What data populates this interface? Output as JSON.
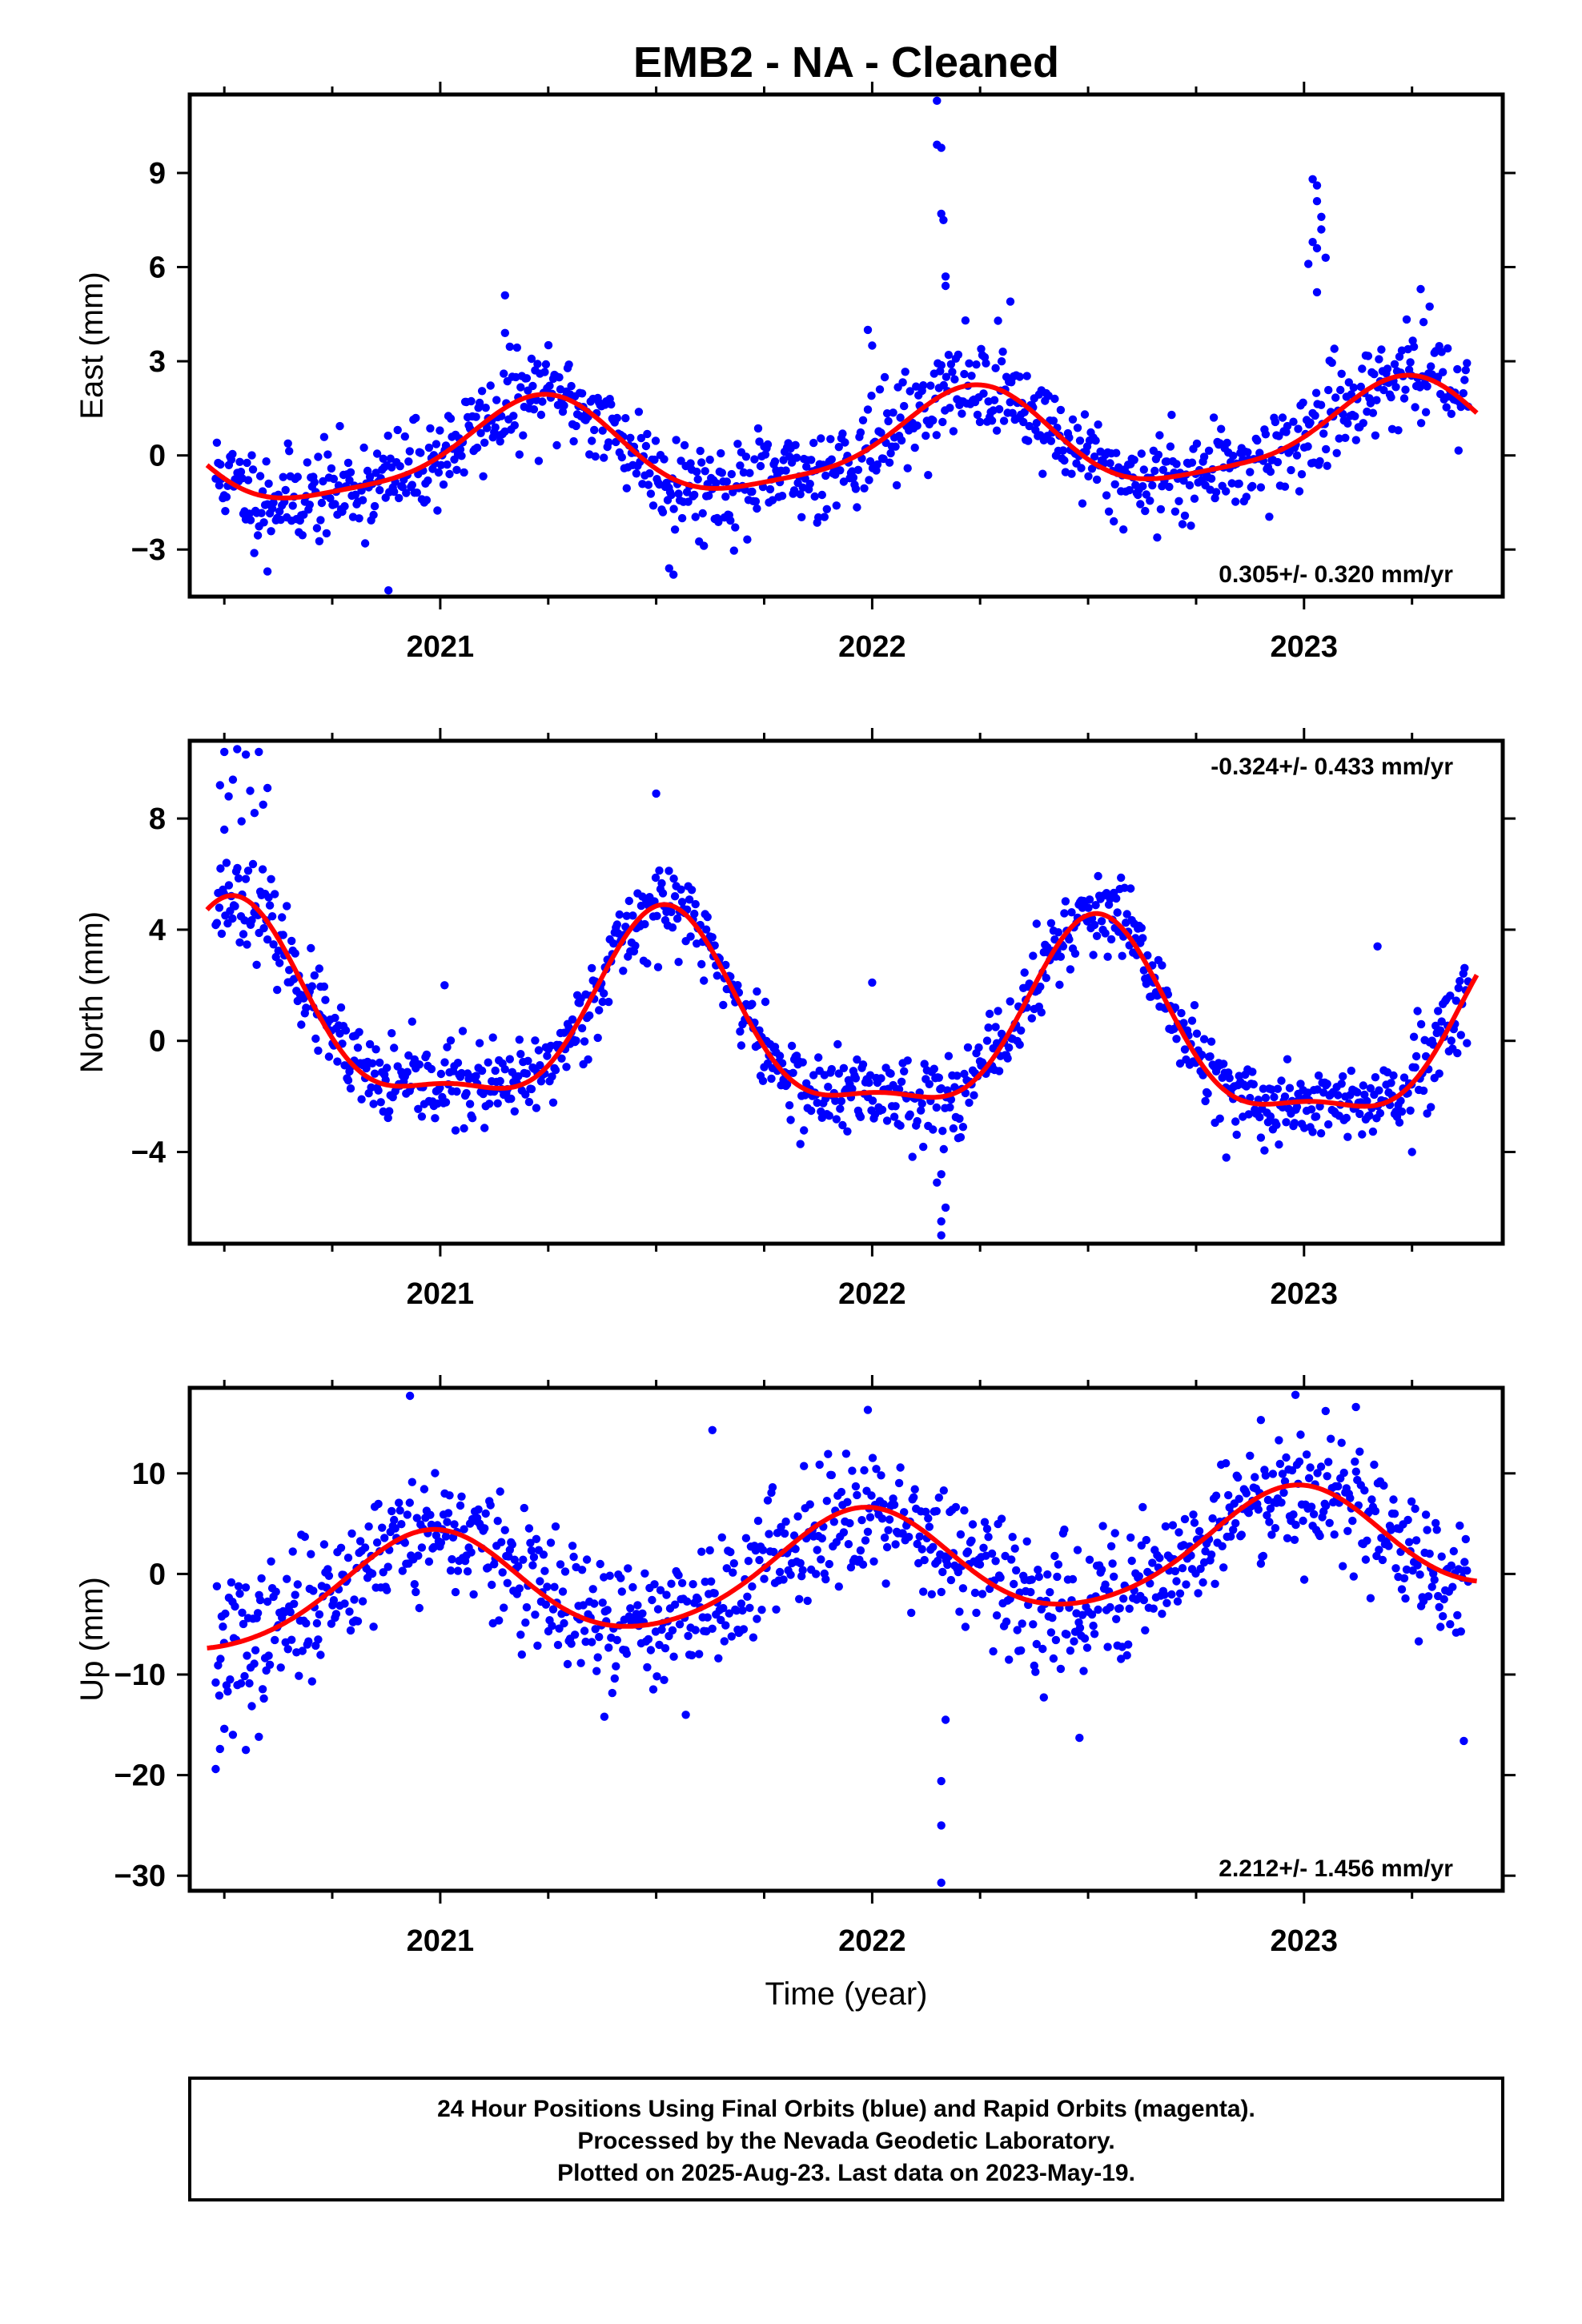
{
  "title": "EMB2  - NA - Cleaned",
  "colors": {
    "final_orbits": "#0000ff",
    "fit_curve": "#ff0000",
    "frame": "#000000"
  },
  "footer": {
    "line1": "24 Hour Positions Using Final Orbits (blue) and Rapid Orbits (magenta).",
    "line2": "Processed by the Nevada Geodetic Laboratory.",
    "line3": "Plotted on 2025-Aug-23. Last data on 2023-May-19."
  },
  "chart_data": [
    {
      "type": "scatter",
      "panel": "east",
      "ylabel": "East (mm)",
      "xlabel": "",
      "xlim": [
        2020.42,
        2023.46
      ],
      "ylim": [
        -4.5,
        11.5
      ],
      "xticks": [
        2021,
        2022,
        2023
      ],
      "xtick_labels": [
        "2021",
        "2022",
        "2023"
      ],
      "yticks": [
        -3,
        0,
        3,
        6,
        9
      ],
      "ytick_labels": [
        "−3",
        "0",
        "3",
        "6",
        "9"
      ],
      "rate_text": "0.305+/- 0.320 mm/yr",
      "rate_position": "bottom-right",
      "fit": {
        "mean": 0.35,
        "trend_mm_per_yr": 0.305,
        "annual_amp": 1.5,
        "annual_peak": 2021.22,
        "semiannual_amp": 0.35,
        "semiannual_peak": 2021.26
      },
      "scatter": {
        "n": 1040,
        "start": 2020.48,
        "end": 2023.38,
        "noise": 0.75,
        "seed": 11
      },
      "outliers": [
        {
          "x": 2022.15,
          "y": 11.3
        },
        {
          "x": 2022.15,
          "y": 9.9
        },
        {
          "x": 2022.16,
          "y": 9.8
        },
        {
          "x": 2022.16,
          "y": 7.7
        },
        {
          "x": 2022.165,
          "y": 7.5
        },
        {
          "x": 2022.17,
          "y": 5.7
        },
        {
          "x": 2022.17,
          "y": 5.4
        },
        {
          "x": 2023.02,
          "y": 8.8
        },
        {
          "x": 2023.03,
          "y": 8.6
        },
        {
          "x": 2023.03,
          "y": 8.1
        },
        {
          "x": 2023.04,
          "y": 7.6
        },
        {
          "x": 2023.04,
          "y": 7.2
        },
        {
          "x": 2023.02,
          "y": 6.8
        },
        {
          "x": 2023.03,
          "y": 6.6
        },
        {
          "x": 2023.05,
          "y": 6.3
        },
        {
          "x": 2023.01,
          "y": 6.1
        },
        {
          "x": 2023.03,
          "y": 5.2
        },
        {
          "x": 2021.15,
          "y": 5.1
        },
        {
          "x": 2021.15,
          "y": 3.9
        },
        {
          "x": 2021.53,
          "y": -3.6
        },
        {
          "x": 2021.54,
          "y": -3.8
        },
        {
          "x": 2020.88,
          "y": -4.3
        },
        {
          "x": 2020.6,
          "y": -3.7
        },
        {
          "x": 2021.99,
          "y": 4.0
        },
        {
          "x": 2022.0,
          "y": 3.5
        },
        {
          "x": 2022.32,
          "y": 4.9
        },
        {
          "x": 2023.27,
          "y": 5.3
        }
      ]
    },
    {
      "type": "scatter",
      "panel": "north",
      "ylabel": "North (mm)",
      "xlabel": "",
      "xlim": [
        2020.42,
        2023.46
      ],
      "ylim": [
        -7.3,
        10.8
      ],
      "xticks": [
        2021,
        2022,
        2023
      ],
      "xtick_labels": [
        "2021",
        "2022",
        "2023"
      ],
      "yticks": [
        -4,
        0,
        4,
        8
      ],
      "ytick_labels": [
        "−4",
        "0",
        "4",
        "8"
      ],
      "rate_text": "-0.324+/- 0.433 mm/yr",
      "rate_position": "top-right",
      "fit": {
        "mean": 0.35,
        "trend_mm_per_yr": -0.324,
        "annual_amp": 3.3,
        "annual_peak": 2021.52,
        "semiannual_amp": 1.1,
        "semiannual_peak": 2021.52
      },
      "scatter": {
        "n": 1040,
        "start": 2020.48,
        "end": 2023.38,
        "noise": 0.75,
        "seed": 23
      },
      "outliers": [
        {
          "x": 2020.5,
          "y": 10.4
        },
        {
          "x": 2020.53,
          "y": 10.5
        },
        {
          "x": 2020.55,
          "y": 10.3
        },
        {
          "x": 2020.58,
          "y": 10.4
        },
        {
          "x": 2020.49,
          "y": 9.2
        },
        {
          "x": 2020.52,
          "y": 9.4
        },
        {
          "x": 2020.56,
          "y": 9.0
        },
        {
          "x": 2020.6,
          "y": 9.1
        },
        {
          "x": 2020.59,
          "y": 8.5
        },
        {
          "x": 2020.51,
          "y": 8.8
        },
        {
          "x": 2020.5,
          "y": 7.6
        },
        {
          "x": 2020.54,
          "y": 7.9
        },
        {
          "x": 2020.57,
          "y": 8.2
        },
        {
          "x": 2021.5,
          "y": 8.9
        },
        {
          "x": 2022.16,
          "y": -7.0
        },
        {
          "x": 2022.16,
          "y": -6.5
        },
        {
          "x": 2022.17,
          "y": -6.0
        },
        {
          "x": 2022.15,
          "y": -5.1
        },
        {
          "x": 2022.16,
          "y": -4.8
        },
        {
          "x": 2021.01,
          "y": 2.0
        },
        {
          "x": 2022.0,
          "y": 2.1
        },
        {
          "x": 2023.17,
          "y": 3.4
        },
        {
          "x": 2023.25,
          "y": -4.0
        },
        {
          "x": 2022.82,
          "y": -4.2
        },
        {
          "x": 2020.72,
          "y": 2.6
        }
      ]
    },
    {
      "type": "scatter",
      "panel": "up",
      "ylabel": "Up (mm)",
      "xlabel": "Time (year)",
      "xlim": [
        2020.42,
        2023.46
      ],
      "ylim": [
        -31.5,
        18.5
      ],
      "xticks": [
        2021,
        2022,
        2023
      ],
      "xtick_labels": [
        "2021",
        "2022",
        "2023"
      ],
      "yticks": [
        -30,
        -20,
        -10,
        0,
        10
      ],
      "ytick_labels": [
        "−30",
        "−20",
        "−10",
        "0",
        "10"
      ],
      "rate_text": "2.212+/- 1.456 mm/yr",
      "rate_position": "bottom-right",
      "fit": {
        "mean": 0.8,
        "trend_mm_per_yr": 2.212,
        "annual_amp": 5.3,
        "annual_peak": 2021.97,
        "semiannual_amp": 0.6,
        "semiannual_peak": 2021.0
      },
      "scatter": {
        "n": 1040,
        "start": 2020.48,
        "end": 2023.38,
        "noise": 3.2,
        "seed": 37
      },
      "outliers": [
        {
          "x": 2022.16,
          "y": -30.7
        },
        {
          "x": 2022.16,
          "y": -25.0
        },
        {
          "x": 2022.16,
          "y": -20.6
        },
        {
          "x": 2022.17,
          "y": -14.5
        },
        {
          "x": 2020.48,
          "y": -19.4
        },
        {
          "x": 2020.49,
          "y": -17.4
        },
        {
          "x": 2020.5,
          "y": -15.4
        },
        {
          "x": 2020.52,
          "y": -16.0
        },
        {
          "x": 2020.58,
          "y": -16.2
        },
        {
          "x": 2020.55,
          "y": -17.5
        },
        {
          "x": 2023.37,
          "y": -16.6
        },
        {
          "x": 2020.93,
          "y": 17.7
        },
        {
          "x": 2022.98,
          "y": 17.8
        },
        {
          "x": 2022.9,
          "y": 15.3
        },
        {
          "x": 2023.12,
          "y": 16.6
        },
        {
          "x": 2021.99,
          "y": 16.3
        },
        {
          "x": 2022.48,
          "y": -16.3
        },
        {
          "x": 2021.38,
          "y": -14.2
        },
        {
          "x": 2021.63,
          "y": 14.3
        },
        {
          "x": 2023.05,
          "y": 16.2
        }
      ]
    }
  ]
}
